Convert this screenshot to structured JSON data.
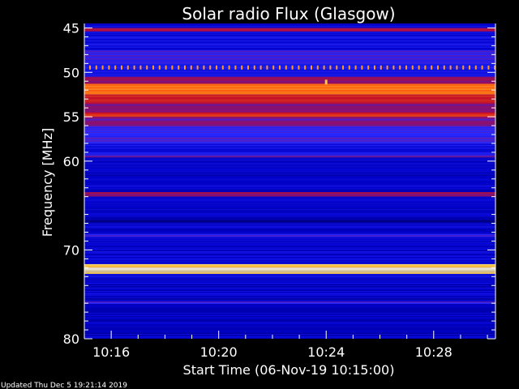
{
  "chart_data": {
    "type": "heatmap",
    "title": "Solar radio Flux (Glasgow)",
    "xlabel": "Start Time (06-Nov-19 10:15:00)",
    "ylabel": "Frequency [MHz]",
    "x_unit": "minutes after 10:00",
    "xlim": [
      15.0,
      30.3
    ],
    "ylim": [
      44.5,
      80
    ],
    "y_reversed": true,
    "x_ticks": [
      {
        "value": 16,
        "label": "10:16"
      },
      {
        "value": 20,
        "label": "10:20"
      },
      {
        "value": 24,
        "label": "10:24"
      },
      {
        "value": 28,
        "label": "10:28"
      }
    ],
    "y_ticks": [
      {
        "value": 45,
        "label": "45"
      },
      {
        "value": 50,
        "label": "50"
      },
      {
        "value": 55,
        "label": "55"
      },
      {
        "value": 60,
        "label": "60"
      },
      {
        "value": 70,
        "label": "70"
      },
      {
        "value": 80,
        "label": "80"
      }
    ],
    "colormap": [
      "#00006a",
      "#0000c8",
      "#2a2aff",
      "#9a1060",
      "#e01010",
      "#ff6a10",
      "#ffd040",
      "#ffffd8"
    ],
    "bands": [
      {
        "freq_start": 44.5,
        "freq_end": 45.0,
        "level": 0.15
      },
      {
        "freq_start": 45.0,
        "freq_end": 45.4,
        "level": 0.45
      },
      {
        "freq_start": 45.4,
        "freq_end": 47.5,
        "level": 0.2
      },
      {
        "freq_start": 47.5,
        "freq_end": 49.0,
        "level": 0.3
      },
      {
        "freq_start": 49.0,
        "freq_end": 50.5,
        "level": 0.25
      },
      {
        "freq_start": 50.5,
        "freq_end": 51.3,
        "level": 0.45
      },
      {
        "freq_start": 51.3,
        "freq_end": 52.5,
        "level": 0.72
      },
      {
        "freq_start": 52.5,
        "freq_end": 53.5,
        "level": 0.58
      },
      {
        "freq_start": 53.5,
        "freq_end": 54.5,
        "level": 0.42
      },
      {
        "freq_start": 54.5,
        "freq_end": 55.0,
        "level": 0.6
      },
      {
        "freq_start": 55.0,
        "freq_end": 56.0,
        "level": 0.4
      },
      {
        "freq_start": 56.0,
        "freq_end": 58.0,
        "level": 0.3
      },
      {
        "freq_start": 58.0,
        "freq_end": 59.3,
        "level": 0.22
      },
      {
        "freq_start": 59.3,
        "freq_end": 59.6,
        "level": 0.35
      },
      {
        "freq_start": 59.6,
        "freq_end": 63.5,
        "level": 0.15
      },
      {
        "freq_start": 63.5,
        "freq_end": 64.0,
        "level": 0.45
      },
      {
        "freq_start": 64.0,
        "freq_end": 66.5,
        "level": 0.14
      },
      {
        "freq_start": 66.5,
        "freq_end": 67.0,
        "level": 0.05
      },
      {
        "freq_start": 67.0,
        "freq_end": 68.2,
        "level": 0.16
      },
      {
        "freq_start": 68.2,
        "freq_end": 68.6,
        "level": 0.3
      },
      {
        "freq_start": 68.6,
        "freq_end": 71.6,
        "level": 0.16
      },
      {
        "freq_start": 71.6,
        "freq_end": 72.0,
        "level": 0.88
      },
      {
        "freq_start": 72.0,
        "freq_end": 72.4,
        "level": 1.0
      },
      {
        "freq_start": 72.4,
        "freq_end": 72.7,
        "level": 0.85
      },
      {
        "freq_start": 72.7,
        "freq_end": 75.8,
        "level": 0.15
      },
      {
        "freq_start": 75.8,
        "freq_end": 76.1,
        "level": 0.3
      },
      {
        "freq_start": 76.1,
        "freq_end": 80.0,
        "level": 0.14
      }
    ],
    "periodic_marks": {
      "freq": 49.5,
      "level": 0.78
    },
    "spot_marks": [
      {
        "time": 24.0,
        "freq": 51.2,
        "level": 0.85
      }
    ]
  },
  "footer": {
    "updated": "Updated Thu Dec  5 19:21:14 2019"
  }
}
